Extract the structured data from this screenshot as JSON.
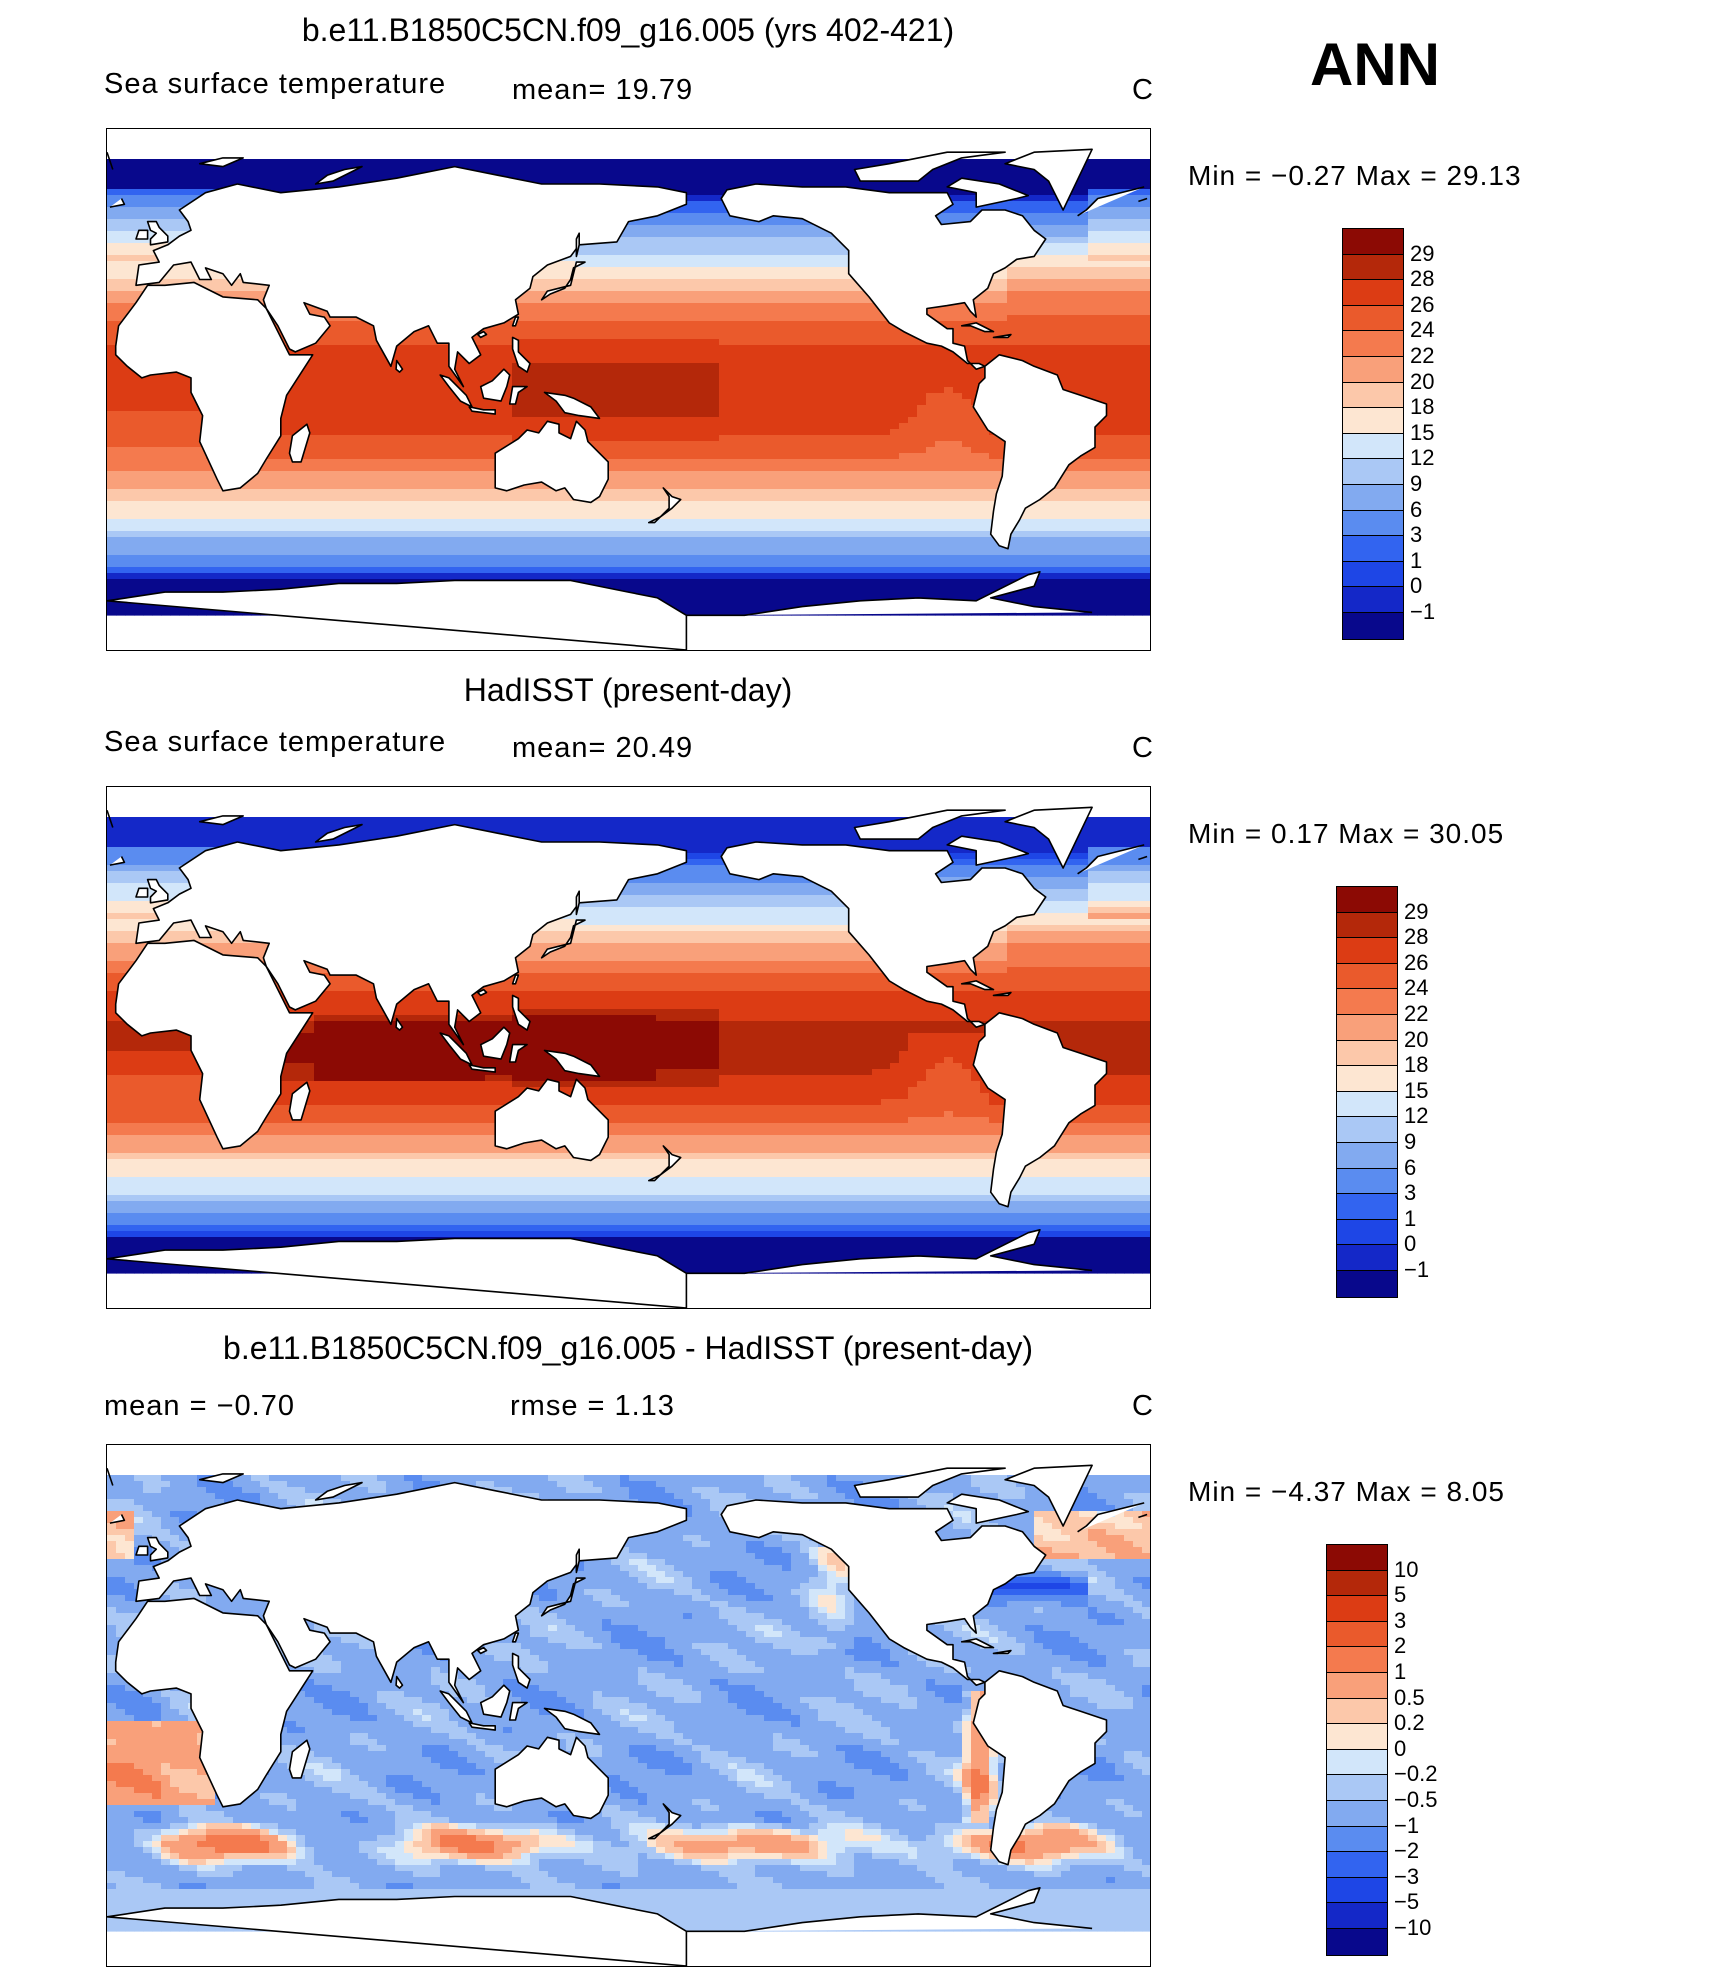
{
  "season": "ANN",
  "panels": [
    {
      "title": "b.e11.B1850C5CN.f09_g16.005 (yrs 402-421)",
      "left_label": "Sea surface temperature",
      "mid_label": "mean=   19.79",
      "unit": "C",
      "minmax": "Min =   −0.27  Max =    29.13",
      "field": "model",
      "colors": [
        "#08088c",
        "#1428c8",
        "#1e46e6",
        "#3264f0",
        "#5a8cf0",
        "#82aaf0",
        "#aac8f5",
        "#d2e6fa",
        "#fde6d2",
        "#fcc8aa",
        "#f9a07a",
        "#f47a4e",
        "#ea5a2c",
        "#dc3c14",
        "#b4280a",
        "#8c0a04"
      ],
      "labels": [
        "29",
        "28",
        "26",
        "24",
        "22",
        "20",
        "18",
        "15",
        "12",
        "9",
        "6",
        "3",
        "1",
        "0",
        "−1"
      ]
    },
    {
      "title": "HadISST (present-day)",
      "left_label": "Sea surface temperature",
      "mid_label": "mean=   20.49",
      "unit": "C",
      "minmax": "Min =    0.17  Max =    30.05",
      "field": "obs",
      "colors": [
        "#08088c",
        "#1428c8",
        "#1e46e6",
        "#3264f0",
        "#5a8cf0",
        "#82aaf0",
        "#aac8f5",
        "#d2e6fa",
        "#fde6d2",
        "#fcc8aa",
        "#f9a07a",
        "#f47a4e",
        "#ea5a2c",
        "#dc3c14",
        "#b4280a",
        "#8c0a04"
      ],
      "labels": [
        "29",
        "28",
        "26",
        "24",
        "22",
        "20",
        "18",
        "15",
        "12",
        "9",
        "6",
        "3",
        "1",
        "0",
        "−1"
      ]
    },
    {
      "title": "b.e11.B1850C5CN.f09_g16.005 - HadISST (present-day)",
      "left_label": "mean =   −0.70",
      "mid_label": "rmse =    1.13",
      "unit": "C",
      "minmax": "Min =   −4.37  Max =     8.05",
      "field": "diff",
      "colors": [
        "#08088c",
        "#1428c8",
        "#1e46e6",
        "#3264f0",
        "#5a8cf0",
        "#82aaf0",
        "#aac8f5",
        "#d2e6fa",
        "#fde6d2",
        "#fcc8aa",
        "#f9a07a",
        "#f47a4e",
        "#ea5a2c",
        "#dc3c14",
        "#b4280a",
        "#8c0a04"
      ],
      "labels": [
        "10",
        "5",
        "3",
        "2",
        "1",
        "0.5",
        "0.2",
        "0",
        "−0.2",
        "−0.5",
        "−1",
        "−2",
        "−3",
        "−5",
        "−10"
      ]
    }
  ]
}
